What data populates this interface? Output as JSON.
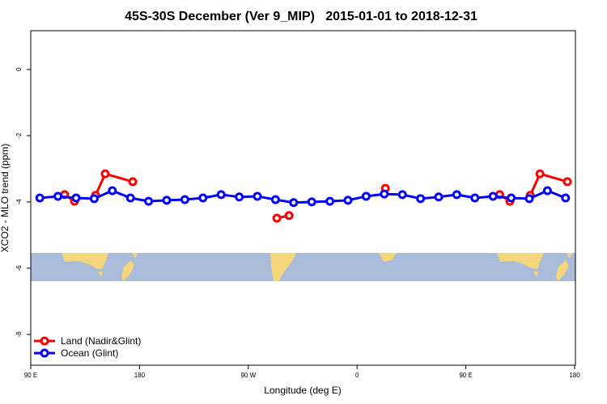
{
  "chart_data": {
    "type": "line",
    "title": "45S-30S December (Ver 9_MIP)   2015-01-01 to 2018-12-31",
    "xlabel": "Longitude (deg E)",
    "ylabel": "XCO2 - MLO trend (ppm)",
    "xlim": [
      90,
      540
    ],
    "ylim": [
      -8.93,
      1.17
    ],
    "xticks": [
      {
        "value": 90,
        "label": "90 E"
      },
      {
        "value": 180,
        "label": "180"
      },
      {
        "value": 270,
        "label": "90 W"
      },
      {
        "value": 360,
        "label": "0"
      },
      {
        "value": 450,
        "label": "90 E"
      },
      {
        "value": 540,
        "label": "180"
      }
    ],
    "yticks": [
      0,
      -2,
      -4,
      -6,
      -8
    ],
    "legend": "bottom-left",
    "series": [
      {
        "name": "Land (Nadir&Glint)",
        "color": "#ff0000",
        "x": [
          118,
          126.2,
          null,
          143.6,
          151.6,
          174.4,
          null,
          293.6,
          303.7,
          null,
          383.4,
          null,
          478,
          486.5,
          null,
          503.3,
          511.3,
          534
        ],
        "values": [
          -3.78,
          -3.98,
          null,
          -3.8,
          -3.15,
          -3.39,
          null,
          -4.49,
          -4.41,
          null,
          -3.59,
          null,
          -3.78,
          -3.98,
          null,
          -3.8,
          -3.15,
          -3.39
        ]
      },
      {
        "name": "Ocean (Glint)",
        "color": "#0000ff",
        "x": [
          97.5,
          112.5,
          127.5,
          142.5,
          157.5,
          172.5,
          187.5,
          202.5,
          217.5,
          232.5,
          247.5,
          262.5,
          277.5,
          292.5,
          307.5,
          322.5,
          337.5,
          352.5,
          367.5,
          382.5,
          397.5,
          412.5,
          427.5,
          442.5,
          457.5,
          472.5,
          487.5,
          502.5,
          517.5,
          532.5
        ],
        "values": [
          -3.88,
          -3.83,
          -3.88,
          -3.9,
          -3.66,
          -3.88,
          -3.98,
          -3.95,
          -3.93,
          -3.88,
          -3.78,
          -3.85,
          -3.83,
          -3.93,
          -4.02,
          -4.0,
          -3.98,
          -3.95,
          -3.83,
          -3.76,
          -3.78,
          -3.9,
          -3.85,
          -3.78,
          -3.88,
          -3.83,
          -3.88,
          -3.9,
          -3.66,
          -3.88
        ]
      }
    ]
  }
}
